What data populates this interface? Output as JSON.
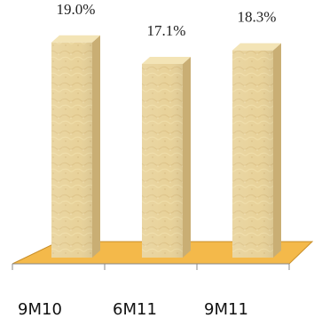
{
  "chart_data": {
    "type": "bar",
    "categories": [
      "9M10",
      "6M11",
      "9M11"
    ],
    "values": [
      19.0,
      17.1,
      18.3
    ],
    "value_labels": [
      "19.0%",
      "17.1%",
      "18.3%"
    ],
    "ylim": [
      0,
      20
    ],
    "grid": false,
    "legend": "none",
    "bar_style": "3d-textured",
    "colors": {
      "bar_front": "#e8d29a",
      "bar_side": "#c9ae74",
      "bar_top": "#f3e4b6",
      "floor": "#f4b94a",
      "floor_edge": "#c98f2a",
      "axis": "#888888"
    }
  }
}
